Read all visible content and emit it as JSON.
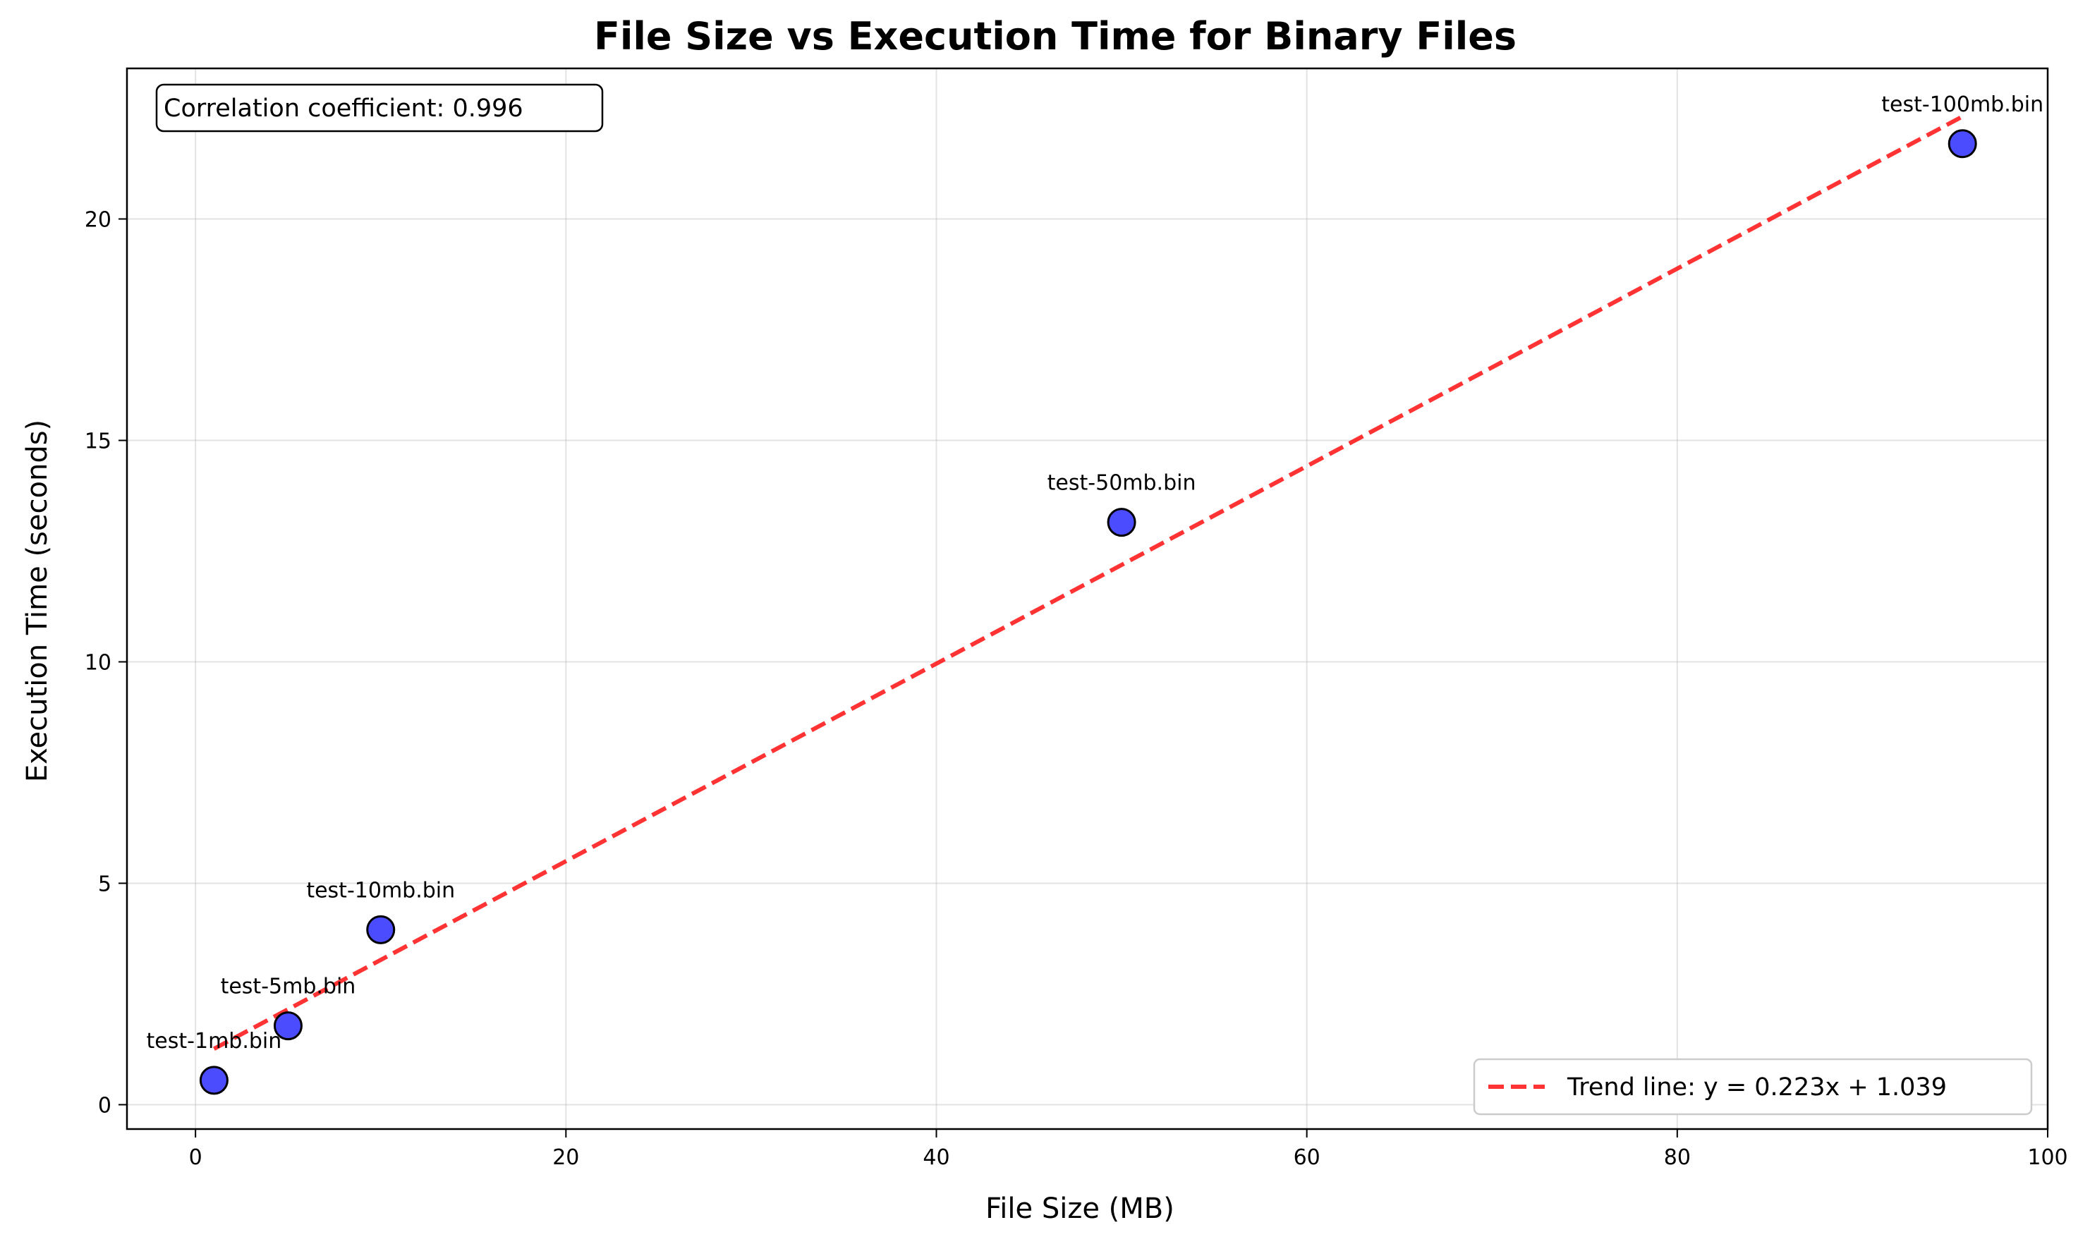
{
  "chart_data": {
    "type": "scatter",
    "title": "File Size vs Execution Time for Binary Files",
    "xlabel": "File Size (MB)",
    "ylabel": "Execution Time (seconds)",
    "xlim": [
      -3.7,
      100
    ],
    "ylim": [
      -0.55,
      23.4
    ],
    "xticks": [
      0,
      20,
      40,
      60,
      80,
      100
    ],
    "yticks": [
      0,
      5,
      10,
      15,
      20
    ],
    "grid": true,
    "series": [
      {
        "points": [
          {
            "label": "test-1mb.bin",
            "x": 1.0,
            "y": 0.55
          },
          {
            "label": "test-5mb.bin",
            "x": 5.0,
            "y": 1.78
          },
          {
            "label": "test-10mb.bin",
            "x": 10.0,
            "y": 3.95
          },
          {
            "label": "test-50mb.bin",
            "x": 50.0,
            "y": 13.15
          },
          {
            "label": "test-100mb.bin",
            "x": 95.4,
            "y": 21.7
          }
        ],
        "color": "#0000ff",
        "edge_color": "#000000"
      }
    ],
    "trend_line": {
      "name": "Trend line: y = 0.223x + 1.039",
      "slope": 0.223,
      "intercept": 1.039,
      "x_range": [
        1.0,
        95.4
      ],
      "color": "#ff0000",
      "style": "dashed"
    },
    "annotation": "Correlation coefficient: 0.996",
    "legend_position": "lower-right"
  }
}
